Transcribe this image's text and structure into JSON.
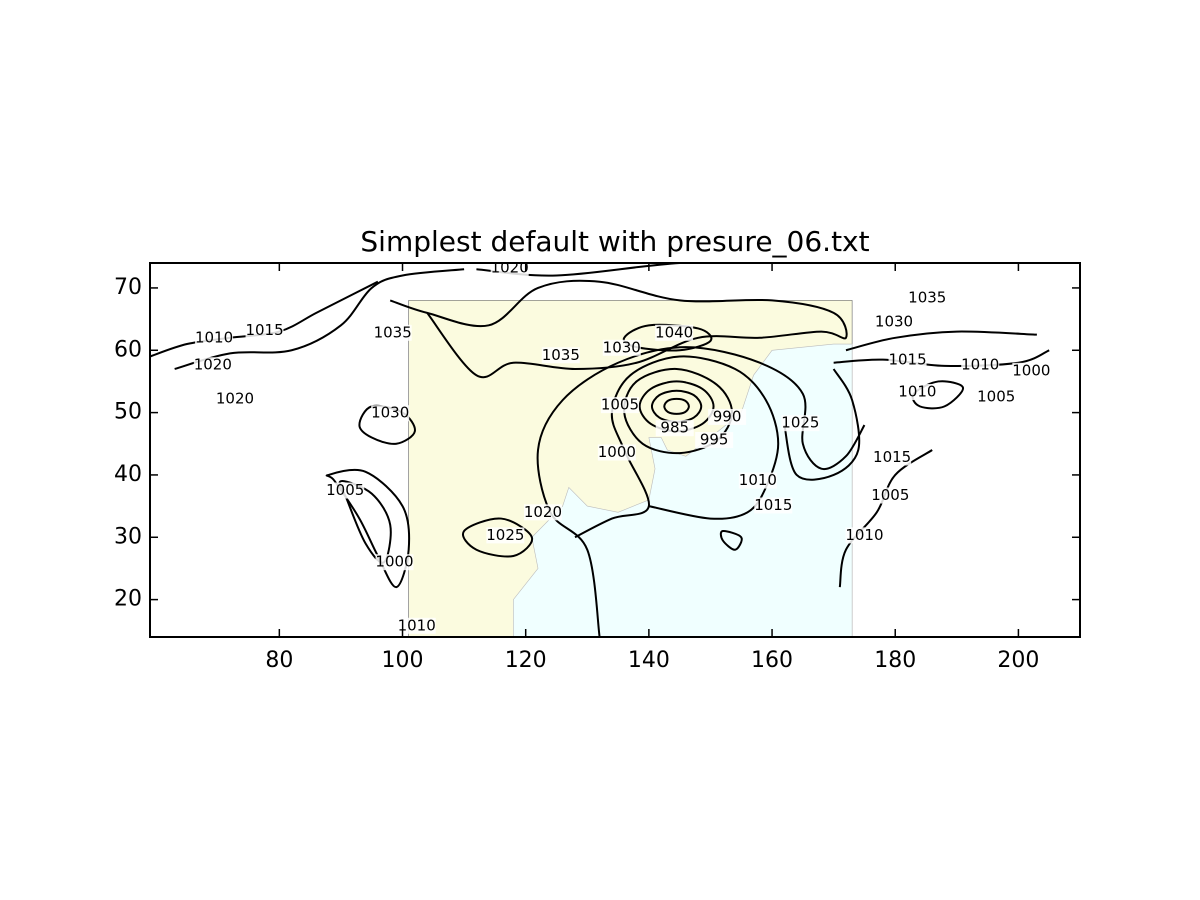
{
  "chart_data": {
    "type": "contour",
    "title": "Simplest default with presure_06.txt",
    "xlim": [
      59,
      210
    ],
    "ylim": [
      14,
      74
    ],
    "xticks": [
      80,
      100,
      120,
      140,
      160,
      180,
      200
    ],
    "yticks": [
      20,
      30,
      40,
      50,
      60,
      70
    ],
    "map": {
      "xlim": [
        101,
        173
      ],
      "ylim": [
        14,
        68
      ],
      "land_color": "#fbfbdf",
      "ocean_color": "#f0ffff",
      "ocean": {
        "x": [
          173,
          118,
          118,
          122,
          121,
          126,
          127,
          130,
          135,
          140,
          141,
          140,
          142,
          143,
          146,
          150,
          155,
          157,
          160,
          170,
          173
        ],
        "y": [
          14,
          14,
          20,
          25,
          30,
          35,
          38,
          35,
          34,
          36,
          41,
          46,
          46,
          44,
          43,
          46,
          50,
          56,
          60,
          61,
          61
        ]
      }
    },
    "line_color": "#000000",
    "contours": [
      {
        "x": [
          136,
          140,
          148,
          150,
          145,
          138
        ],
        "y": [
          62,
          64,
          63.5,
          61.5,
          60,
          60.5
        ],
        "closed": true
      },
      {
        "x": [
          146.5,
          145.9,
          144.5,
          143.1,
          142.5,
          143.1,
          144.5,
          145.9
        ],
        "y": [
          51,
          51.9,
          52.2,
          51.9,
          51,
          50.1,
          49.8,
          50.1
        ],
        "closed": true
      },
      {
        "x": [
          148.5,
          147.3,
          144.5,
          141.7,
          140.5,
          141.7,
          144.5,
          147.3
        ],
        "y": [
          51,
          52.8,
          53.5,
          52.8,
          51,
          49.2,
          48.5,
          49.2
        ],
        "closed": true
      },
      {
        "x": [
          150.5,
          148.7,
          144.5,
          140.3,
          138.5,
          140.3,
          144.5,
          148.7
        ],
        "y": [
          51,
          53.8,
          55,
          53.8,
          51,
          48.2,
          47,
          48.2
        ],
        "closed": true
      },
      {
        "x": [
          153.5,
          151,
          144.5,
          138,
          136,
          139,
          145,
          151
        ],
        "y": [
          50,
          54.5,
          57,
          55,
          50,
          45,
          43.5,
          45.5
        ],
        "closed": true
      },
      {
        "x": [
          128,
          134,
          140,
          136,
          134,
          137,
          145,
          154,
          159,
          161,
          159,
          156,
          150,
          140
        ],
        "y": [
          30,
          33,
          35,
          44,
          50,
          56,
          59,
          57,
          52,
          45,
          38,
          34,
          33,
          35
        ],
        "closed": false
      },
      {
        "x": [
          132,
          130,
          124,
          122,
          126,
          135,
          146,
          158,
          165,
          165,
          168,
          172,
          175
        ],
        "y": [
          14,
          28,
          34,
          44,
          52,
          58,
          60.5,
          58,
          53,
          45,
          41,
          43,
          48
        ],
        "closed": false
      },
      {
        "x": [
          104,
          112,
          118,
          128,
          138,
          148,
          158,
          168,
          172,
          170,
          160,
          145,
          132,
          122,
          114,
          104,
          98
        ],
        "y": [
          66,
          56,
          58,
          57,
          58,
          62,
          62,
          63,
          62,
          66,
          68,
          68,
          71,
          70,
          64,
          66,
          68
        ],
        "closed": false
      },
      {
        "x": [
          112,
          125,
          145,
          165,
          185
        ],
        "y": [
          73,
          72,
          74,
          74.5,
          75
        ],
        "closed": false
      },
      {
        "x": [
          59,
          65,
          72,
          80,
          86,
          92,
          96
        ],
        "y": [
          59,
          61,
          62,
          63,
          66,
          69,
          71
        ],
        "closed": false
      },
      {
        "x": [
          63,
          72,
          82,
          90,
          95,
          100,
          110
        ],
        "y": [
          57,
          59.5,
          60,
          64,
          70,
          72,
          73
        ],
        "closed": false
      },
      {
        "x": [
          93,
          95,
          100,
          102,
          99,
          95
        ],
        "y": [
          48,
          51,
          50,
          47,
          45,
          46
        ],
        "closed": true
      },
      {
        "x": [
          90,
          95,
          98,
          97,
          94,
          91
        ],
        "y": [
          39,
          37,
          32,
          26,
          29,
          36
        ],
        "closed": true
      },
      {
        "x": [
          88,
          94,
          100,
          101,
          99,
          96,
          93,
          89
        ],
        "y": [
          40,
          40.5,
          35,
          28,
          22,
          27,
          33,
          39
        ],
        "closed": true
      },
      {
        "x": [
          172,
          180,
          190,
          203
        ],
        "y": [
          60,
          62,
          63,
          62.5
        ],
        "closed": false
      },
      {
        "x": [
          170,
          178,
          188,
          200,
          205
        ],
        "y": [
          58,
          58.5,
          57.5,
          58,
          60
        ],
        "closed": false
      },
      {
        "x": [
          183,
          187,
          191,
          188,
          184
        ],
        "y": [
          53,
          55,
          54,
          51,
          51
        ],
        "closed": true
      },
      {
        "x": [
          186,
          180,
          177,
          172,
          171
        ],
        "y": [
          44,
          40,
          34,
          28,
          22
        ],
        "closed": false
      },
      {
        "x": [
          162,
          164,
          170,
          174,
          173,
          170
        ],
        "y": [
          48,
          40,
          40,
          44,
          52,
          57
        ],
        "closed": false
      },
      {
        "x": [
          110,
          116,
          121,
          118,
          112
        ],
        "y": [
          31,
          33,
          30,
          27,
          28
        ],
        "closed": true
      },
      {
        "x": [
          152,
          155,
          154,
          152
        ],
        "y": [
          31,
          30,
          28,
          29.5
        ],
        "closed": true
      }
    ],
    "contour_labels": [
      {
        "level": 1020,
        "x": 117.4,
        "y": 73.2
      },
      {
        "level": 1035,
        "x": 185.2,
        "y": 68.4
      },
      {
        "level": 1010,
        "x": 69.4,
        "y": 62.0
      },
      {
        "level": 1015,
        "x": 77.6,
        "y": 63.2
      },
      {
        "level": 1020,
        "x": 69.2,
        "y": 57.6
      },
      {
        "level": 1035,
        "x": 98.4,
        "y": 62.8
      },
      {
        "level": 1035,
        "x": 125.7,
        "y": 59.2
      },
      {
        "level": 1030,
        "x": 135.6,
        "y": 60.4
      },
      {
        "level": 1040,
        "x": 144.1,
        "y": 62.8
      },
      {
        "level": 1030,
        "x": 179.8,
        "y": 64.5
      },
      {
        "level": 1015,
        "x": 182.0,
        "y": 58.4
      },
      {
        "level": 1020,
        "x": 72.8,
        "y": 52.2
      },
      {
        "level": 1030,
        "x": 98.0,
        "y": 49.9
      },
      {
        "level": 1005,
        "x": 135.3,
        "y": 51.2
      },
      {
        "level": 985,
        "x": 144.2,
        "y": 47.5
      },
      {
        "level": 990,
        "x": 152.7,
        "y": 49.3
      },
      {
        "level": 995,
        "x": 150.6,
        "y": 45.6
      },
      {
        "level": 1000,
        "x": 134.8,
        "y": 43.6
      },
      {
        "level": 1025,
        "x": 164.6,
        "y": 48.3
      },
      {
        "level": 1010,
        "x": 183.6,
        "y": 53.3
      },
      {
        "level": 1010,
        "x": 193.8,
        "y": 57.6
      },
      {
        "level": 1000,
        "x": 202.1,
        "y": 56.7
      },
      {
        "level": 1005,
        "x": 196.4,
        "y": 52.5
      },
      {
        "level": 1010,
        "x": 157.7,
        "y": 39.1
      },
      {
        "level": 1015,
        "x": 160.2,
        "y": 35.1
      },
      {
        "level": 1015,
        "x": 179.5,
        "y": 42.8
      },
      {
        "level": 1005,
        "x": 179.2,
        "y": 36.7
      },
      {
        "level": 1010,
        "x": 175.0,
        "y": 30.3
      },
      {
        "level": 1020,
        "x": 122.8,
        "y": 34.0
      },
      {
        "level": 1025,
        "x": 116.7,
        "y": 30.3
      },
      {
        "level": 1005,
        "x": 90.7,
        "y": 37.5
      },
      {
        "level": 1000,
        "x": 98.7,
        "y": 26.0
      },
      {
        "level": 1010,
        "x": 102.3,
        "y": 15.8
      }
    ]
  }
}
